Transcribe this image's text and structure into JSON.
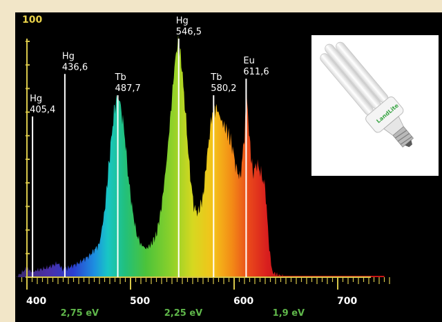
{
  "page_header_text": "",
  "chart_data": {
    "type": "area",
    "y_scale_label": "100",
    "x_ticks_nm": [
      {
        "value": 400,
        "label": "400"
      },
      {
        "value": 500,
        "label": "500"
      },
      {
        "value": 600,
        "label": "600"
      },
      {
        "value": 700,
        "label": "700"
      }
    ],
    "energy_ticks": [
      {
        "nm": 450.9,
        "label": "2,75 eV"
      },
      {
        "nm": 551.0,
        "label": "2,25 eV"
      },
      {
        "nm": 652.6,
        "label": "1,9 eV"
      }
    ],
    "xlim_nm": [
      385,
      760
    ],
    "ylim": [
      0,
      100
    ],
    "peaks": [
      {
        "element": "Hg",
        "wavelength": "405,4",
        "nm": 405.4,
        "height": 67
      },
      {
        "element": "Hg",
        "wavelength": "436,6",
        "nm": 436.6,
        "height": 85
      },
      {
        "element": "Tb",
        "wavelength": "487,7",
        "nm": 487.7,
        "height": 76
      },
      {
        "element": "Hg",
        "wavelength": "546,5",
        "nm": 546.5,
        "height": 100
      },
      {
        "element": "Tb",
        "wavelength": "580,2",
        "nm": 580.2,
        "height": 76
      },
      {
        "element": "Eu",
        "wavelength": "611,6",
        "nm": 611.6,
        "height": 83
      }
    ],
    "envelope": [
      [
        390,
        0
      ],
      [
        400,
        4
      ],
      [
        405,
        2
      ],
      [
        410,
        3
      ],
      [
        420,
        4
      ],
      [
        430,
        6
      ],
      [
        435,
        3
      ],
      [
        440,
        4
      ],
      [
        450,
        6
      ],
      [
        460,
        9
      ],
      [
        470,
        14
      ],
      [
        475,
        28
      ],
      [
        480,
        52
      ],
      [
        484,
        70
      ],
      [
        487,
        76
      ],
      [
        490,
        74
      ],
      [
        494,
        62
      ],
      [
        498,
        42
      ],
      [
        502,
        28
      ],
      [
        506,
        18
      ],
      [
        510,
        14
      ],
      [
        515,
        12
      ],
      [
        520,
        14
      ],
      [
        525,
        18
      ],
      [
        530,
        30
      ],
      [
        535,
        50
      ],
      [
        540,
        76
      ],
      [
        543,
        92
      ],
      [
        546,
        100
      ],
      [
        549,
        92
      ],
      [
        553,
        70
      ],
      [
        557,
        46
      ],
      [
        561,
        30
      ],
      [
        565,
        27
      ],
      [
        570,
        34
      ],
      [
        575,
        56
      ],
      [
        579,
        70
      ],
      [
        583,
        72
      ],
      [
        588,
        66
      ],
      [
        593,
        62
      ],
      [
        598,
        56
      ],
      [
        602,
        46
      ],
      [
        606,
        42
      ],
      [
        610,
        60
      ],
      [
        612,
        78
      ],
      [
        615,
        58
      ],
      [
        618,
        44
      ],
      [
        622,
        48
      ],
      [
        626,
        44
      ],
      [
        630,
        38
      ],
      [
        634,
        12
      ],
      [
        637,
        2
      ],
      [
        642,
        1
      ],
      [
        650,
        0
      ]
    ]
  },
  "lamp_image": {
    "brand_text": "LandLite"
  }
}
